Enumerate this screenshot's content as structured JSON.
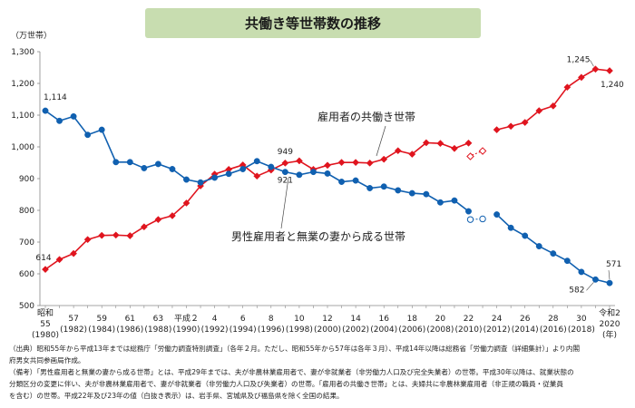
{
  "header": {
    "title": "共働き等世帯数の推移"
  },
  "notes": [
    "（出典）昭和55年から平成13年までは総務庁「労働力調査特別調査」（各年２月。ただし、昭和55年から57年は各年３月）、平成14年以降は総務省「労働力調査（詳細集計）」より内閣",
    "府男女共同参画局作成。",
    "（備考）「男性雇用者と無業の妻から成る世帯」とは、平成29年までは、夫が非農林業雇用者で、妻が非就業者（非労働力人口及び完全失業者）の世帯。平成30年以降は、就業状態の",
    "分類区分の変更に伴い、夫が非農林業雇用者で、妻が非就業者（非労働力人口及び失業者）の世帯。「雇用者の共働き世帯」とは、夫婦共に非農林業雇用者（非正規の職員・従業員",
    "を含む）の世帯。平成22年及び23年の値（白抜き表示）は、岩手県、宮城県及び福島県を除く全国の結果。"
  ],
  "chart_data": {
    "type": "line",
    "unit_label": "（万世帯）",
    "year_suffix": "(年)",
    "ylim": [
      500,
      1300
    ],
    "yticks": [
      500,
      600,
      700,
      800,
      900,
      1000,
      1100,
      1200,
      1300
    ],
    "ytick_labels": [
      "500",
      "600",
      "700",
      "800",
      "900",
      "1,000",
      "1,100",
      "1,200",
      "1,300"
    ],
    "x_years": [
      1980,
      1981,
      1982,
      1983,
      1984,
      1985,
      1986,
      1987,
      1988,
      1989,
      1990,
      1991,
      1992,
      1993,
      1994,
      1995,
      1996,
      1997,
      1998,
      1999,
      2000,
      2001,
      2002,
      2003,
      2004,
      2005,
      2006,
      2007,
      2008,
      2009,
      2010,
      2011,
      2012,
      2013,
      2014,
      2015,
      2016,
      2017,
      2018,
      2019,
      2020
    ],
    "x_ticks": [
      {
        "year": 1980,
        "top": "昭和",
        "mid": "55",
        "bottom": "(1980)"
      },
      {
        "year": 1982,
        "top": "",
        "mid": "57",
        "bottom": "(1982)"
      },
      {
        "year": 1984,
        "top": "",
        "mid": "59",
        "bottom": "(1984)"
      },
      {
        "year": 1986,
        "top": "",
        "mid": "61",
        "bottom": "(1986)"
      },
      {
        "year": 1988,
        "top": "",
        "mid": "63",
        "bottom": "(1988)"
      },
      {
        "year": 1990,
        "top": "",
        "mid": "平成２",
        "bottom": "(1990)"
      },
      {
        "year": 1992,
        "top": "",
        "mid": "4",
        "bottom": "(1992)"
      },
      {
        "year": 1994,
        "top": "",
        "mid": "6",
        "bottom": "(1994)"
      },
      {
        "year": 1996,
        "top": "",
        "mid": "8",
        "bottom": "(1996)"
      },
      {
        "year": 1998,
        "top": "",
        "mid": "10",
        "bottom": "(1998)"
      },
      {
        "year": 2000,
        "top": "",
        "mid": "12",
        "bottom": "(2000)"
      },
      {
        "year": 2002,
        "top": "",
        "mid": "14",
        "bottom": "(2002)"
      },
      {
        "year": 2004,
        "top": "",
        "mid": "16",
        "bottom": "(2004)"
      },
      {
        "year": 2006,
        "top": "",
        "mid": "18",
        "bottom": "(2006)"
      },
      {
        "year": 2008,
        "top": "",
        "mid": "20",
        "bottom": "(2008)"
      },
      {
        "year": 2010,
        "top": "",
        "mid": "22",
        "bottom": "(2010)"
      },
      {
        "year": 2012,
        "top": "",
        "mid": "24",
        "bottom": "(2012)"
      },
      {
        "year": 2014,
        "top": "",
        "mid": "26",
        "bottom": "(2014)"
      },
      {
        "year": 2016,
        "top": "",
        "mid": "28",
        "bottom": "(2016)"
      },
      {
        "year": 2018,
        "top": "",
        "mid": "30",
        "bottom": "(2018)"
      },
      {
        "year": 2020,
        "top": "",
        "mid": "令和2",
        "bottom": "2020"
      }
    ],
    "series": [
      {
        "name": "雇用者の共働き世帯",
        "color": "#e0141e",
        "marker": "diamond",
        "values": [
          614,
          645,
          664,
          708,
          721,
          722,
          720,
          748,
          771,
          783,
          823,
          877,
          914,
          929,
          943,
          908,
          927,
          949,
          956,
          929,
          942,
          951,
          951,
          949,
          961,
          988,
          977,
          1013,
          1011,
          995,
          1012,
          987,
          1054,
          1065,
          1077,
          1114,
          1129,
          1188,
          1219,
          1245,
          1240
        ],
        "segments": [
          [
            1980,
            2010
          ],
          [
            2012,
            2020
          ]
        ],
        "hollow_years": [
          2010,
          2011
        ],
        "hollow_values": [
          970,
          987
        ],
        "point_labels": [
          {
            "year": 1980,
            "text": "614"
          },
          {
            "year": 1997,
            "text": "949"
          },
          {
            "year": 2019,
            "text": "1,245"
          },
          {
            "year": 2020,
            "text": "1,240"
          }
        ]
      },
      {
        "name": "男性雇用者と無業の妻から成る世帯",
        "color": "#1060b0",
        "marker": "circle",
        "values": [
          1114,
          1082,
          1096,
          1038,
          1054,
          952,
          952,
          933,
          946,
          930,
          897,
          888,
          903,
          915,
          930,
          955,
          937,
          921,
          912,
          921,
          916,
          890,
          894,
          870,
          875,
          863,
          854,
          851,
          825,
          831,
          797,
          773,
          787,
          745,
          720,
          687,
          664,
          641,
          606,
          582,
          571
        ],
        "segments": [
          [
            1980,
            2010
          ],
          [
            2012,
            2020
          ]
        ],
        "hollow_years": [
          2010,
          2011
        ],
        "hollow_values": [
          771,
          773
        ],
        "point_labels": [
          {
            "year": 1980,
            "text": "1,114"
          },
          {
            "year": 1997,
            "text": "921"
          },
          {
            "year": 2019,
            "text": "582"
          },
          {
            "year": 2020,
            "text": "571"
          }
        ]
      }
    ]
  }
}
